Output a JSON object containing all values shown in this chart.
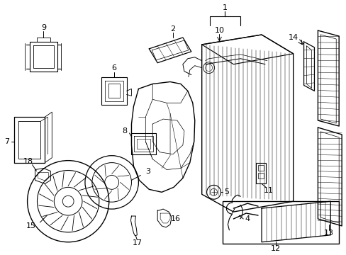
{
  "bg_color": "#ffffff",
  "line_color": "#000000",
  "fig_width": 4.89,
  "fig_height": 3.6,
  "dpi": 100,
  "font_size": 8
}
